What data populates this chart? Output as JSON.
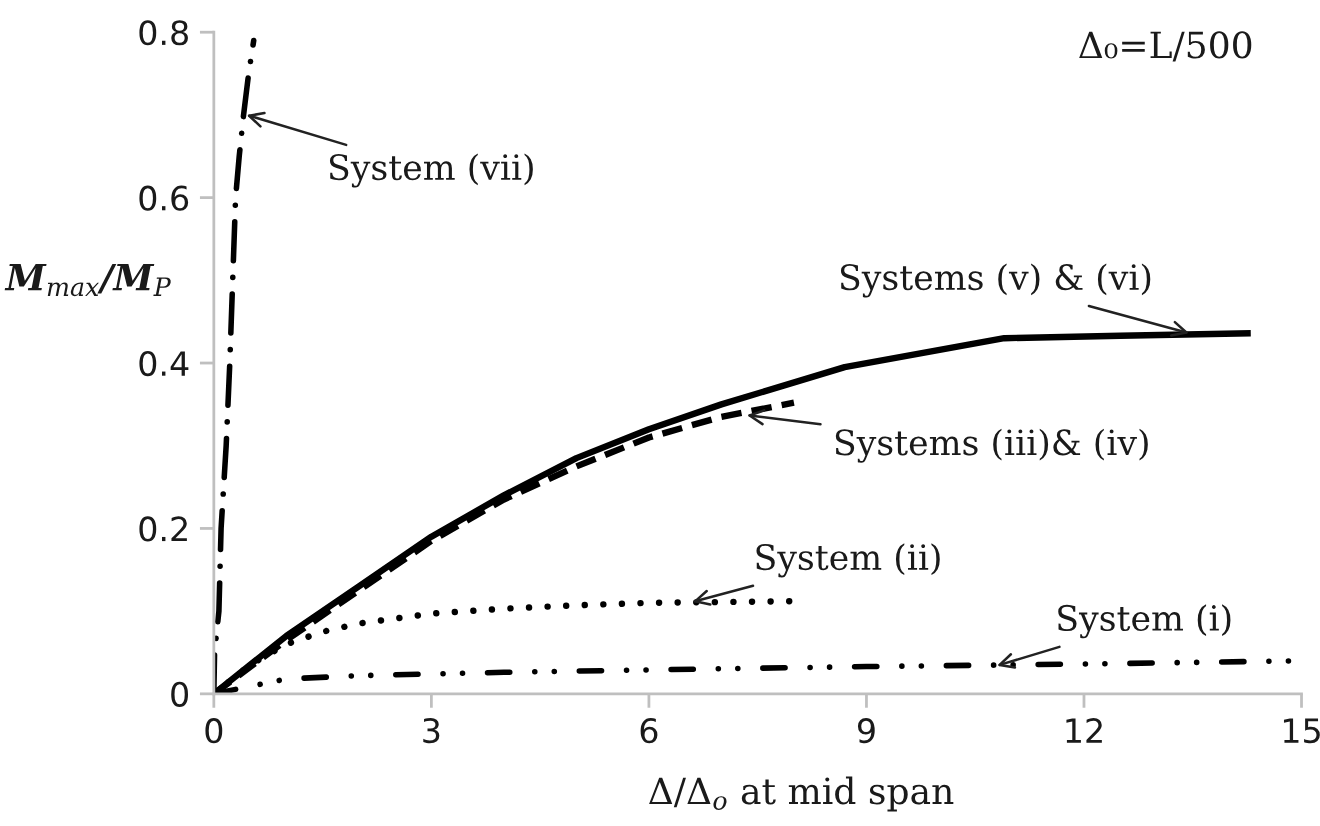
{
  "chart_data": {
    "type": "line",
    "xlabel": "Δ/Δ$_{o}$ at mid span",
    "ylabel": "M$_{max}$/M$_{P}$",
    "xlim": [
      0,
      15
    ],
    "xticks": [
      0,
      3,
      6,
      9,
      12,
      15
    ],
    "ylim": [
      0,
      0.8
    ],
    "yticks": [
      0,
      0.2,
      0.4,
      0.6,
      0.8
    ],
    "series": [
      {
        "color": "#000000",
        "line_style": "dashdot",
        "x": [
          0,
          0.01,
          0.07,
          0.1,
          0.17,
          0.22,
          0.26,
          0.3,
          0.35,
          0.41,
          0.48,
          0.55
        ],
        "values": [
          0,
          0.05,
          0.1,
          0.2,
          0.3,
          0.4,
          0.5,
          0.6,
          0.65,
          0.7,
          0.75,
          0.79
        ]
      },
      {
        "color": "#000000",
        "line_style": "solid",
        "x": [
          0,
          1,
          2,
          3,
          4,
          5,
          6,
          7,
          8.7,
          10.9,
          12.5,
          14.3
        ],
        "values": [
          0,
          0.07,
          0.13,
          0.19,
          0.24,
          0.285,
          0.32,
          0.35,
          0.395,
          0.43,
          0.433,
          0.436
        ]
      },
      {
        "color": "#000000",
        "line_style": "dashed",
        "x": [
          0,
          1,
          2,
          3,
          4,
          5,
          6,
          7,
          8
        ],
        "values": [
          0,
          0.065,
          0.125,
          0.185,
          0.235,
          0.275,
          0.31,
          0.335,
          0.352
        ]
      },
      {
        "color": "#000000",
        "line_style": "dotted",
        "x": [
          0,
          0.5,
          1,
          1.5,
          2,
          3,
          4,
          5,
          6,
          7,
          8
        ],
        "values": [
          0,
          0.035,
          0.06,
          0.075,
          0.085,
          0.097,
          0.103,
          0.107,
          0.11,
          0.111,
          0.112
        ]
      },
      {
        "color": "#000000",
        "line_style": "dashdotdot",
        "x": [
          0,
          1,
          2,
          4,
          6,
          9,
          12,
          15
        ],
        "values": [
          0,
          0.018,
          0.022,
          0.026,
          0.029,
          0.033,
          0.036,
          0.04
        ]
      }
    ],
    "annotations": [
      "Δ₀=L/500",
      {
        "text": "System (vii)",
        "x": 0.45,
        "y": 0.7
      },
      {
        "text": "Systems (v) & (vi)",
        "x": 13.45,
        "y": 0.436
      },
      {
        "text": "Systems (iii)& (iv)",
        "x": 7.35,
        "y": 0.337
      },
      {
        "text": "System (ii)",
        "x": 6.6,
        "y": 0.111
      },
      {
        "text": "System (i)",
        "x": 10.8,
        "y": 0.034
      }
    ]
  }
}
